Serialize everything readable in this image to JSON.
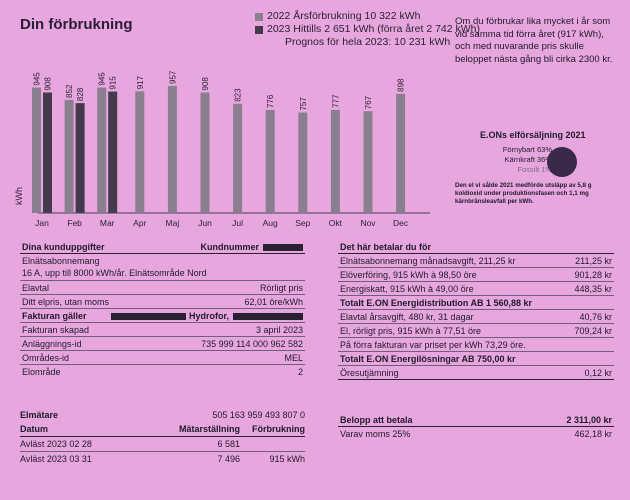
{
  "title": "Din förbrukning",
  "legend": {
    "series_2022": "2022 Årsförbrukning 10 322 kWh",
    "series_2023": "2023 Hittills 2 651 kWh (förra året 2 742 kWh)",
    "prognosis": "Prognos för hela 2023: 10 231 kWh"
  },
  "side_note": "Om du förbrukar lika mycket i år som vid samma tid förra året (917 kWh), och med nuvarande pris skulle beloppet nästa gång bli cirka  2300 kr.",
  "chart_data": {
    "type": "bar",
    "categories": [
      "Jan",
      "Feb",
      "Mar",
      "Apr",
      "Maj",
      "Jun",
      "Jul",
      "Aug",
      "Sep",
      "Okt",
      "Nov",
      "Dec"
    ],
    "series": [
      {
        "name": "2022",
        "values": [
          945,
          852,
          945,
          917,
          957,
          908,
          823,
          776,
          757,
          777,
          767,
          898
        ]
      },
      {
        "name": "2023",
        "values": [
          908,
          828,
          915,
          null,
          null,
          null,
          null,
          null,
          null,
          null,
          null,
          null
        ]
      }
    ],
    "ylabel": "kWh",
    "ylim": [
      0,
      1000
    ],
    "colors": {
      "s2022": "#8a7f8e",
      "s2023": "#433a4c"
    }
  },
  "eon": {
    "title": "E.ONs elförsäljning 2021",
    "renewable": "Förnybart 63%",
    "nuclear": "Kärnkraft 36%",
    "fossil": "Fossilt 1%",
    "description": "Den el vi sålde 2021 medförde utsläpp av 5,8 g koldioxid under produktionsfasen och 1,1 mg kärnbränsleavfall per kWh."
  },
  "customer": {
    "header_left": "Dina kunduppgifter",
    "header_right": "Kundnummer",
    "subscription_line1": "Elnätsabonnemang",
    "subscription_line2": "16 A, upp till 8000 kWh/år. Elnätsområde Nord",
    "elavtal_label": "Elavtal",
    "elavtal_value": "Rörligt pris",
    "price_label": "Ditt elpris, utan moms",
    "price_value": "62,01 öre/kWh",
    "invoice_label": "Fakturan gäller",
    "invoice_value": "Hydrofor,",
    "created_label": "Fakturan skapad",
    "created_value": "3 april 2023",
    "facility_label": "Anläggnings-id",
    "facility_value": "735 999 114 000 962 582",
    "area_id_label": "Områdes-id",
    "area_id_value": "MEL",
    "elomrade_label": "Elområde",
    "elomrade_value": "2"
  },
  "meter": {
    "label": "Elmätare",
    "number": "505 163 959 493 807 0",
    "col_date": "Datum",
    "col_reading": "Mätarställning",
    "col_usage": "Förbrukning",
    "rows": [
      {
        "date": "Avläst 2023 02 28",
        "reading": "6 581",
        "usage": ""
      },
      {
        "date": "Avläst 2023 03 31",
        "reading": "7 496",
        "usage": "915 kWh"
      }
    ]
  },
  "charges": {
    "header": "Det här betalar du för",
    "rows": [
      {
        "label": "Elnätsabonnemang månadsavgift, 211,25 kr",
        "value": "211,25 kr"
      },
      {
        "label": "Elöverföring, 915 kWh à 98,50 öre",
        "value": "901,28 kr"
      },
      {
        "label": "Energiskatt, 915 kWh à 49,00 öre",
        "value": "448,35 kr"
      },
      {
        "label": "Totalt E.ON Energidistribution AB 1 560,88 kr",
        "value": ""
      },
      {
        "label": "Elavtal årsavgift, 480 kr, 31 dagar",
        "value": "40,76 kr"
      },
      {
        "label": "El, rörligt pris, 915 kWh à 77,51 öre",
        "value": "709,24 kr"
      },
      {
        "label": "På förra fakturan var priset per kWh 73,29 öre.",
        "value": ""
      },
      {
        "label": "Totalt E.ON Energilösningar AB 750,00 kr",
        "value": ""
      },
      {
        "label": "Öresutjämning",
        "value": "0,12 kr"
      }
    ],
    "total_label": "Belopp att betala",
    "total_value": "2 311,00 kr",
    "vat_label": "Varav moms 25%",
    "vat_value": "462,18 kr"
  }
}
